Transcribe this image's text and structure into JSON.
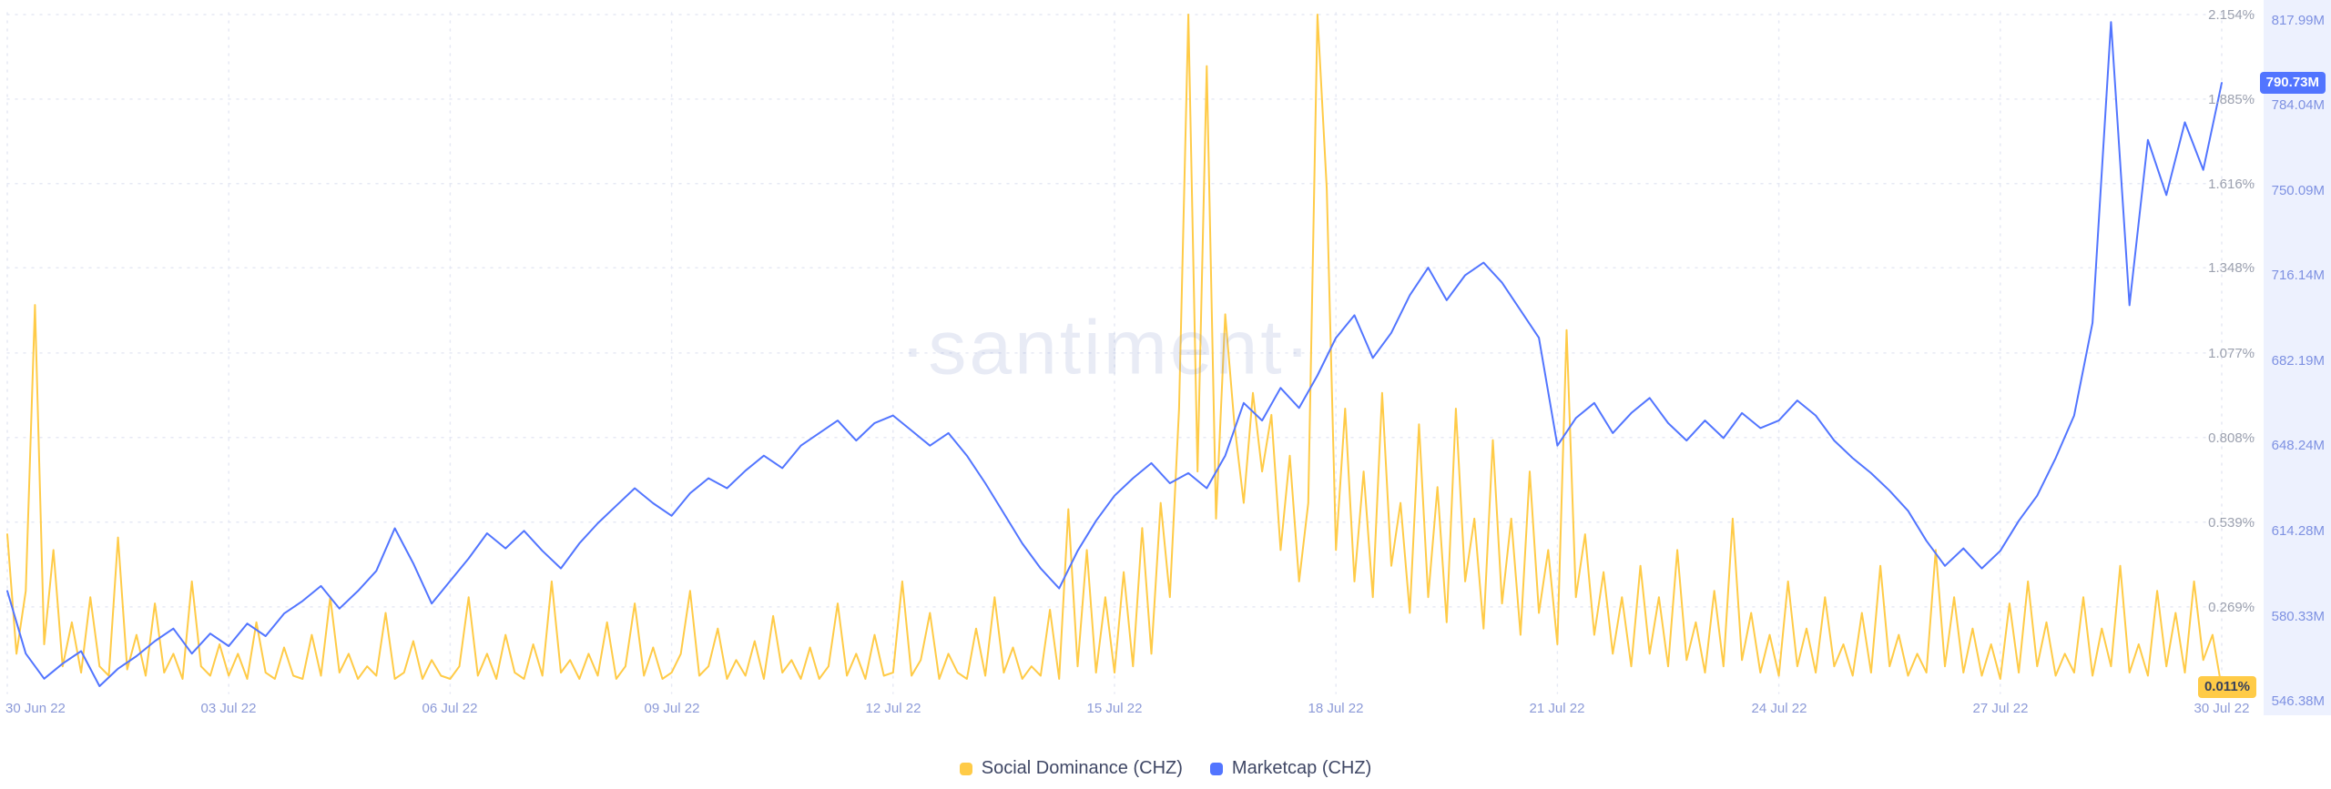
{
  "watermark": "·santiment·",
  "chart_data": {
    "type": "line",
    "title": "",
    "grid": true,
    "legend_position": "bottom-center",
    "legend": [
      {
        "label": "Social Dominance (CHZ)",
        "color": "#FFCB47"
      },
      {
        "label": "Marketcap (CHZ)",
        "color": "#5275FF"
      }
    ],
    "x_axis": {
      "unit": "days since 30 Jun 22",
      "tick_days": [
        0,
        3,
        6,
        9,
        12,
        15,
        18,
        21,
        24,
        27,
        30
      ],
      "tick_labels": [
        "30 Jun 22",
        "03 Jul 22",
        "06 Jul 22",
        "09 Jul 22",
        "12 Jul 22",
        "15 Jul 22",
        "18 Jul 22",
        "21 Jul 22",
        "24 Jul 22",
        "27 Jul 22",
        "30 Jul 22"
      ]
    },
    "y_axes": {
      "percent": {
        "ticks": [
          "2.154%",
          "1.885%",
          "1.616%",
          "1.348%",
          "1.077%",
          "0.808%",
          "0.539%",
          "0.269%"
        ],
        "tick_values": [
          2.154,
          1.885,
          1.616,
          1.348,
          1.077,
          0.808,
          0.539,
          0.269
        ],
        "range": [
          0.011,
          2.154
        ],
        "last_value_label": "0.011%",
        "last_value": 0.011
      },
      "marketcap": {
        "ticks": [
          "817.99M",
          "784.04M",
          "750.09M",
          "716.14M",
          "682.19M",
          "648.24M",
          "614.28M",
          "580.33M",
          "546.38M"
        ],
        "tick_values": [
          817.99,
          784.04,
          750.09,
          716.14,
          682.19,
          648.24,
          614.28,
          580.33,
          546.38
        ],
        "range": [
          546.38,
          817.99
        ],
        "last_value_label": "790.73M",
        "last_value": 790.73
      }
    },
    "series": [
      {
        "name": "Social Dominance (CHZ)",
        "color": "#FFCB47",
        "axis": "percent",
        "unit": "%",
        "t0": 0,
        "dt": 0.125,
        "values": [
          0.5,
          0.12,
          0.32,
          1.23,
          0.15,
          0.45,
          0.08,
          0.22,
          0.06,
          0.3,
          0.08,
          0.05,
          0.49,
          0.07,
          0.18,
          0.05,
          0.28,
          0.06,
          0.12,
          0.04,
          0.35,
          0.08,
          0.05,
          0.15,
          0.05,
          0.12,
          0.04,
          0.22,
          0.06,
          0.04,
          0.14,
          0.05,
          0.04,
          0.18,
          0.05,
          0.3,
          0.06,
          0.12,
          0.04,
          0.08,
          0.05,
          0.25,
          0.04,
          0.06,
          0.16,
          0.04,
          0.1,
          0.05,
          0.04,
          0.08,
          0.3,
          0.05,
          0.12,
          0.04,
          0.18,
          0.06,
          0.04,
          0.15,
          0.05,
          0.35,
          0.06,
          0.1,
          0.04,
          0.12,
          0.05,
          0.22,
          0.04,
          0.08,
          0.28,
          0.05,
          0.14,
          0.04,
          0.06,
          0.12,
          0.32,
          0.05,
          0.08,
          0.2,
          0.04,
          0.1,
          0.05,
          0.16,
          0.04,
          0.24,
          0.06,
          0.1,
          0.04,
          0.14,
          0.04,
          0.08,
          0.28,
          0.05,
          0.12,
          0.04,
          0.18,
          0.05,
          0.06,
          0.35,
          0.05,
          0.1,
          0.25,
          0.04,
          0.12,
          0.06,
          0.04,
          0.2,
          0.05,
          0.3,
          0.06,
          0.14,
          0.04,
          0.08,
          0.05,
          0.26,
          0.04,
          0.58,
          0.08,
          0.45,
          0.06,
          0.3,
          0.06,
          0.38,
          0.08,
          0.52,
          0.12,
          0.6,
          0.3,
          0.9,
          2.154,
          0.7,
          1.99,
          0.55,
          1.2,
          0.85,
          0.6,
          0.95,
          0.7,
          0.88,
          0.45,
          0.75,
          0.35,
          0.6,
          2.154,
          1.6,
          0.45,
          0.9,
          0.35,
          0.7,
          0.3,
          0.95,
          0.4,
          0.6,
          0.25,
          0.85,
          0.3,
          0.65,
          0.22,
          0.9,
          0.35,
          0.55,
          0.2,
          0.8,
          0.28,
          0.55,
          0.18,
          0.7,
          0.25,
          0.45,
          0.15,
          1.15,
          0.3,
          0.5,
          0.18,
          0.38,
          0.12,
          0.3,
          0.08,
          0.4,
          0.12,
          0.3,
          0.08,
          0.45,
          0.1,
          0.22,
          0.06,
          0.32,
          0.08,
          0.55,
          0.1,
          0.25,
          0.06,
          0.18,
          0.05,
          0.35,
          0.08,
          0.2,
          0.06,
          0.3,
          0.08,
          0.15,
          0.05,
          0.25,
          0.06,
          0.4,
          0.08,
          0.18,
          0.05,
          0.12,
          0.06,
          0.45,
          0.08,
          0.3,
          0.06,
          0.2,
          0.05,
          0.15,
          0.04,
          0.28,
          0.06,
          0.35,
          0.08,
          0.22,
          0.05,
          0.12,
          0.06,
          0.3,
          0.05,
          0.2,
          0.08,
          0.4,
          0.06,
          0.15,
          0.05,
          0.32,
          0.08,
          0.25,
          0.06,
          0.35,
          0.1,
          0.18,
          0.011
        ]
      },
      {
        "name": "Marketcap (CHZ)",
        "color": "#5275FF",
        "axis": "marketcap",
        "unit": "M USD",
        "t0": 0,
        "dt": 0.25,
        "values": [
          588,
          563,
          553,
          559,
          564,
          550,
          557,
          562,
          568,
          573,
          563,
          571,
          566,
          575,
          570,
          579,
          584,
          590,
          581,
          588,
          596,
          613,
          599,
          583,
          592,
          601,
          611,
          605,
          612,
          604,
          597,
          607,
          615,
          622,
          629,
          623,
          618,
          627,
          633,
          629,
          636,
          642,
          637,
          646,
          651,
          656,
          648,
          655,
          658,
          652,
          646,
          651,
          642,
          631,
          619,
          607,
          597,
          589,
          604,
          616,
          626,
          633,
          639,
          631,
          635,
          629,
          642,
          663,
          656,
          669,
          661,
          674,
          689,
          698,
          681,
          691,
          706,
          717,
          704,
          714,
          719,
          711,
          700,
          689,
          646,
          657,
          663,
          651,
          659,
          665,
          655,
          648,
          656,
          649,
          659,
          653,
          656,
          664,
          658,
          648,
          641,
          635,
          628,
          620,
          608,
          598,
          605,
          597,
          604,
          616,
          626,
          641,
          658,
          695,
          815,
          702,
          768,
          746,
          775,
          756,
          790.73
        ]
      }
    ]
  }
}
